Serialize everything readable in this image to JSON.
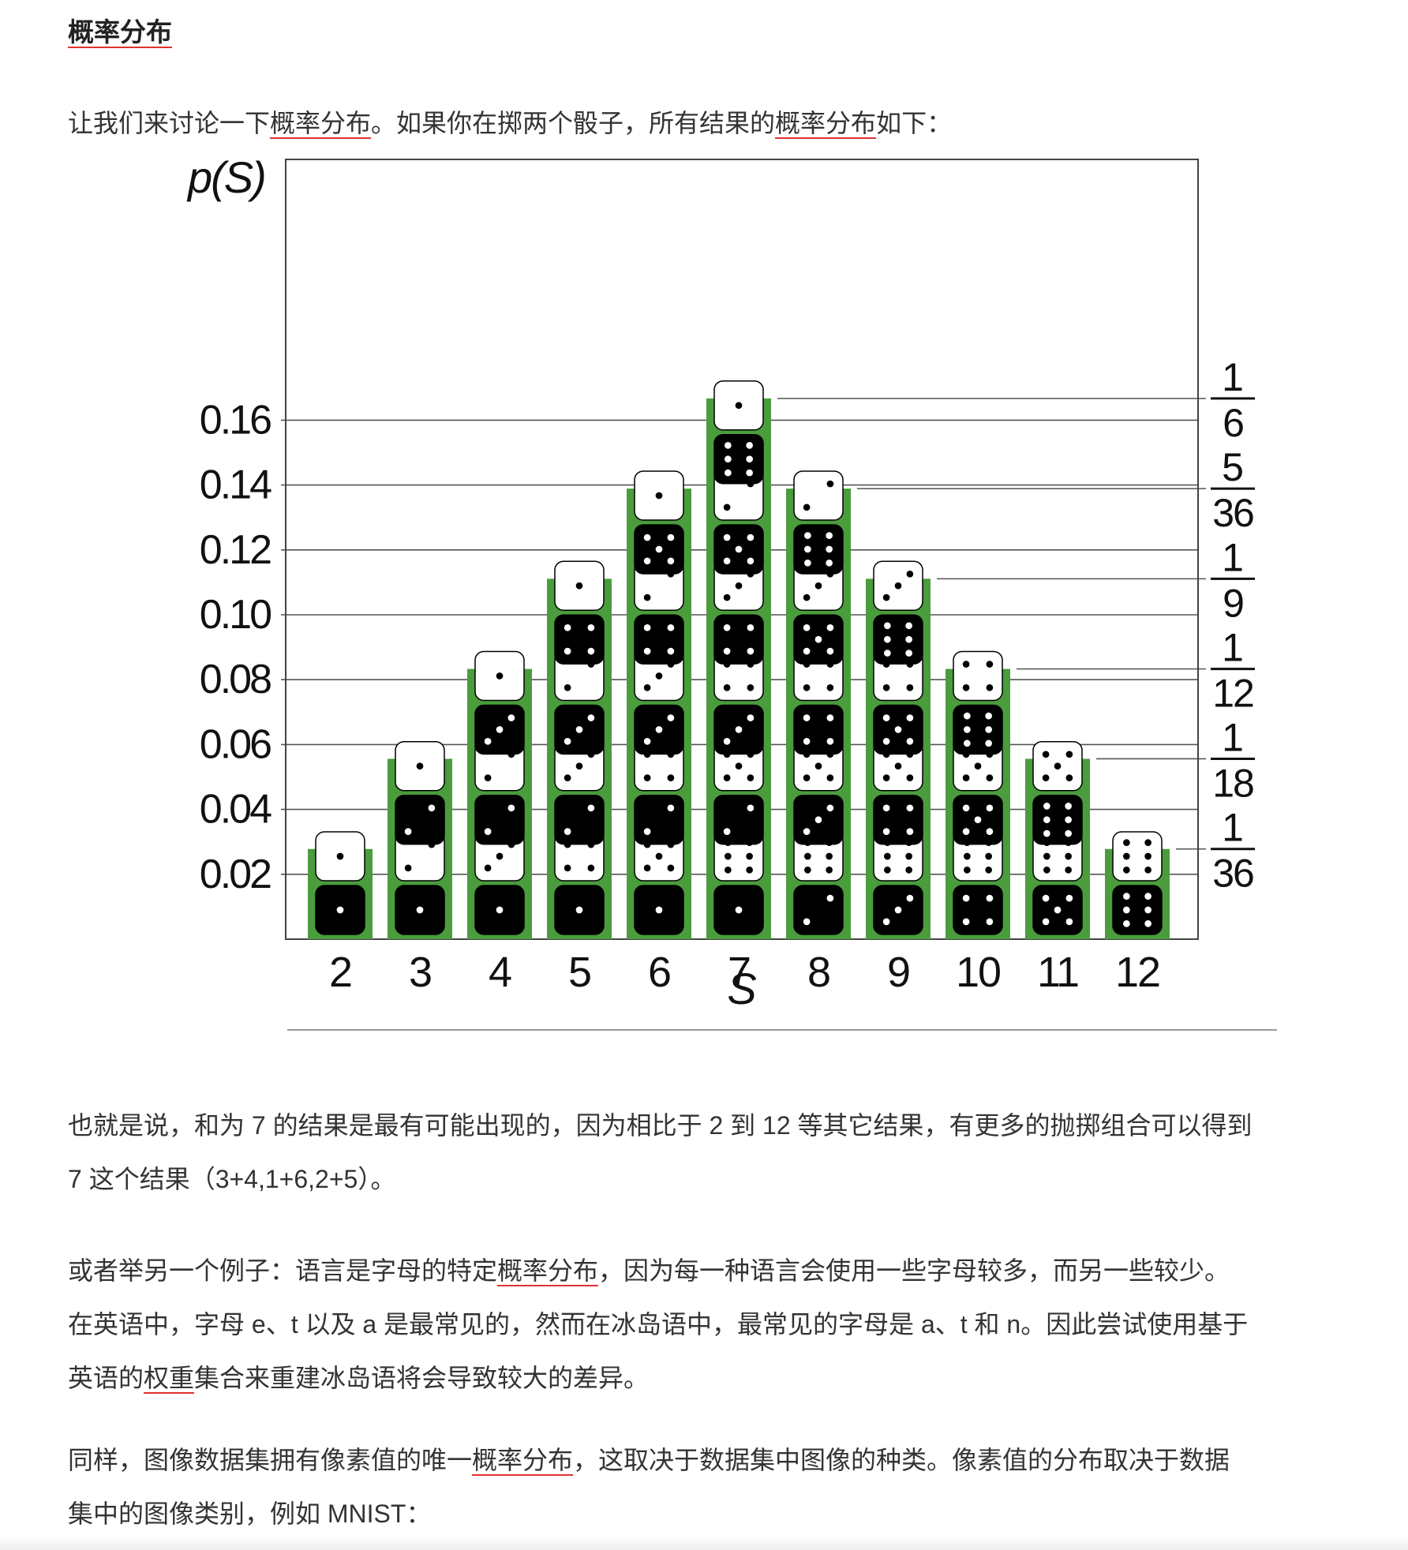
{
  "article": {
    "heading": "概率分布",
    "p1": {
      "a": "让我们来讨论一下",
      "term1": "概率分布",
      "b": "。如果你在掷两个骰子，所有结果的",
      "term2": "概率分布",
      "c": "如下："
    },
    "p2": {
      "line1": "也就是说，和为 7 的结果是最有可能出现的，因为相比于 2 到 12 等其它结果，有更多的抛掷组合可以得到",
      "line2": "7 这个结果（3+4,1+6,2+5）。"
    },
    "p3": {
      "a": "或者举另一个例子：语言是字母的特定",
      "term1": "概率分布",
      "b": "，因为每一种语言会使用一些字母较多，而另一些较少。",
      "line2": "在英语中，字母 e、t 以及 a 是最常见的，然而在冰岛语中，最常见的字母是 a、t 和 n。因此尝试使用基于",
      "c": "英语的",
      "term2": "权重",
      "d": "集合来重建冰岛语将会导致较大的差异。"
    },
    "p4": {
      "a": "同样，图像数据集拥有像素值的唯一",
      "term1": "概率分布",
      "b": "，这取决于数据集中图像的种类。像素值的分布取决于数据",
      "line2": "集中的图像类别，例如 MNIST："
    }
  },
  "chart_data": {
    "type": "bar",
    "ylabel": "p(S)",
    "xlabel": "S",
    "categories": [
      "2",
      "3",
      "4",
      "5",
      "6",
      "7",
      "8",
      "9",
      "10",
      "11",
      "12"
    ],
    "values": [
      0.0278,
      0.0556,
      0.0833,
      0.1111,
      0.1389,
      0.1667,
      0.1389,
      0.1111,
      0.0833,
      0.0556,
      0.0278
    ],
    "ylim": [
      0,
      0.18
    ],
    "y_ticks": [
      "0.02",
      "0.04",
      "0.06",
      "0.08",
      "0.10",
      "0.12",
      "0.14",
      "0.16"
    ],
    "y_tick_values": [
      0.02,
      0.04,
      0.06,
      0.08,
      0.1,
      0.12,
      0.14,
      0.16
    ],
    "right_labels": [
      {
        "num": "1",
        "den": "6",
        "value": 0.1667
      },
      {
        "num": "5",
        "den": "36",
        "value": 0.1389
      },
      {
        "num": "1",
        "den": "9",
        "value": 0.1111
      },
      {
        "num": "1",
        "den": "12",
        "value": 0.0833
      },
      {
        "num": "1",
        "den": "18",
        "value": 0.0556
      },
      {
        "num": "1",
        "den": "36",
        "value": 0.0278
      }
    ],
    "dice_pairs": {
      "2": [
        [
          1,
          1
        ]
      ],
      "3": [
        [
          1,
          2
        ],
        [
          2,
          1
        ]
      ],
      "4": [
        [
          1,
          3
        ],
        [
          2,
          2
        ],
        [
          3,
          1
        ]
      ],
      "5": [
        [
          1,
          4
        ],
        [
          2,
          3
        ],
        [
          3,
          2
        ],
        [
          4,
          1
        ]
      ],
      "6": [
        [
          1,
          5
        ],
        [
          2,
          4
        ],
        [
          3,
          3
        ],
        [
          4,
          2
        ],
        [
          5,
          1
        ]
      ],
      "7": [
        [
          1,
          6
        ],
        [
          2,
          5
        ],
        [
          3,
          4
        ],
        [
          4,
          3
        ],
        [
          5,
          2
        ],
        [
          6,
          1
        ]
      ],
      "8": [
        [
          2,
          6
        ],
        [
          3,
          5
        ],
        [
          4,
          4
        ],
        [
          5,
          3
        ],
        [
          6,
          2
        ]
      ],
      "9": [
        [
          3,
          6
        ],
        [
          4,
          5
        ],
        [
          5,
          4
        ],
        [
          6,
          3
        ]
      ],
      "10": [
        [
          4,
          6
        ],
        [
          5,
          5
        ],
        [
          6,
          4
        ]
      ],
      "11": [
        [
          5,
          6
        ],
        [
          6,
          5
        ]
      ],
      "12": [
        [
          6,
          6
        ]
      ]
    },
    "grid": true,
    "colors": {
      "bar": "#4a9c3d",
      "die_white": "#ffffff",
      "die_black": "#000000",
      "line": "#555555"
    }
  }
}
